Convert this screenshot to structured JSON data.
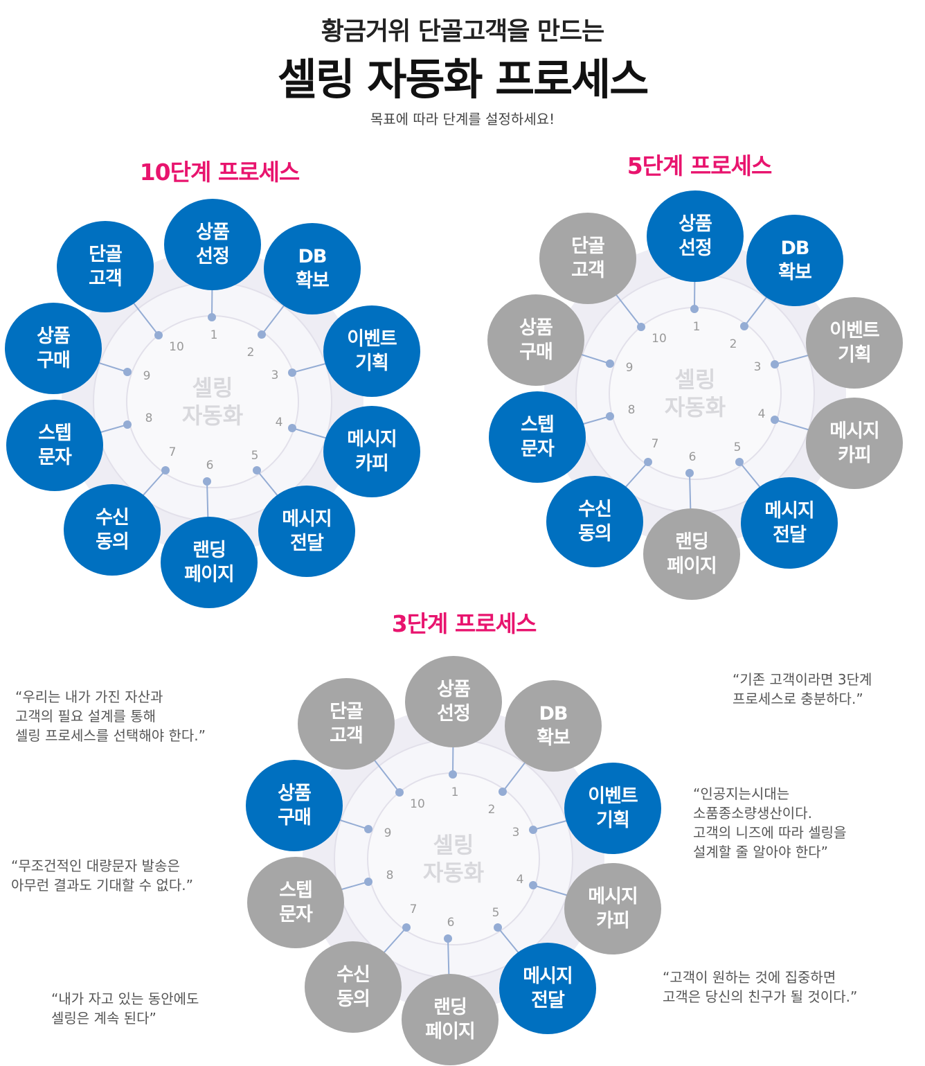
{
  "header": {
    "line1": "황금거위 단골고객을 만드는",
    "line2": "셀링 자동화 프로세스",
    "subtitle": "목표에 따라 단계를 설정하세요!"
  },
  "colors": {
    "active": "#0070c0",
    "inactive": "#a6a6a6",
    "title": "#e8146e"
  },
  "diagrams": [
    {
      "title": "10단계 프로세스",
      "center": [
        "셀링",
        "자동화"
      ],
      "numbers": [
        "1",
        "2",
        "3",
        "4",
        "5",
        "6",
        "7",
        "8",
        "9",
        "10"
      ],
      "steps": [
        {
          "l1": "상품",
          "l2": "선정",
          "active": true
        },
        {
          "l1": "DB",
          "l2": "확보",
          "active": true
        },
        {
          "l1": "이벤트",
          "l2": "기획",
          "active": true
        },
        {
          "l1": "메시지",
          "l2": "카피",
          "active": true
        },
        {
          "l1": "메시지",
          "l2": "전달",
          "active": true
        },
        {
          "l1": "랜딩",
          "l2": "페이지",
          "active": true
        },
        {
          "l1": "수신",
          "l2": "동의",
          "active": true
        },
        {
          "l1": "스텝",
          "l2": "문자",
          "active": true
        },
        {
          "l1": "상품",
          "l2": "구매",
          "active": true
        },
        {
          "l1": "단골",
          "l2": "고객",
          "active": true
        }
      ]
    },
    {
      "title": "5단계 프로세스",
      "center": [
        "셀링",
        "자동화"
      ],
      "numbers": [
        "1",
        "2",
        "3",
        "4",
        "5",
        "6",
        "7",
        "8",
        "9",
        "10"
      ],
      "steps": [
        {
          "l1": "상품",
          "l2": "선정",
          "active": true
        },
        {
          "l1": "DB",
          "l2": "확보",
          "active": true
        },
        {
          "l1": "이벤트",
          "l2": "기획",
          "active": false
        },
        {
          "l1": "메시지",
          "l2": "카피",
          "active": false
        },
        {
          "l1": "메시지",
          "l2": "전달",
          "active": true
        },
        {
          "l1": "랜딩",
          "l2": "페이지",
          "active": false
        },
        {
          "l1": "수신",
          "l2": "동의",
          "active": true
        },
        {
          "l1": "스텝",
          "l2": "문자",
          "active": true
        },
        {
          "l1": "상품",
          "l2": "구매",
          "active": false
        },
        {
          "l1": "단골",
          "l2": "고객",
          "active": false
        }
      ]
    },
    {
      "title": "3단계 프로세스",
      "center": [
        "셀링",
        "자동화"
      ],
      "numbers": [
        "1",
        "2",
        "3",
        "4",
        "5",
        "6",
        "7",
        "8",
        "9",
        "10"
      ],
      "steps": [
        {
          "l1": "상품",
          "l2": "선정",
          "active": false
        },
        {
          "l1": "DB",
          "l2": "확보",
          "active": false
        },
        {
          "l1": "이벤트",
          "l2": "기획",
          "active": true
        },
        {
          "l1": "메시지",
          "l2": "카피",
          "active": false
        },
        {
          "l1": "메시지",
          "l2": "전달",
          "active": true
        },
        {
          "l1": "랜딩",
          "l2": "페이지",
          "active": false
        },
        {
          "l1": "수신",
          "l2": "동의",
          "active": false
        },
        {
          "l1": "스텝",
          "l2": "문자",
          "active": false
        },
        {
          "l1": "상품",
          "l2": "구매",
          "active": true
        },
        {
          "l1": "단골",
          "l2": "고객",
          "active": false
        }
      ]
    }
  ],
  "quotes": [
    "“우리는 내가 가진 자산과\n고객의 필요 설계를 통해\n셀링 프로세스를 선택해야 한다.”",
    "“무조건적인 대량문자 발송은\n아무런 결과도 기대할 수 없다.”",
    "“내가 자고 있는 동안에도\n셀링은 계속 된다”",
    "“기존 고객이라면 3단계\n프로세스로 충분하다.”",
    "“인공지는시대는\n소품종소량생산이다.\n고객의 니즈에 따라 셀링을\n설계할 줄 알아야 한다”",
    "“고객이 원하는 것에 집중하면\n고객은 당신의 친구가 될 것이다.”"
  ]
}
